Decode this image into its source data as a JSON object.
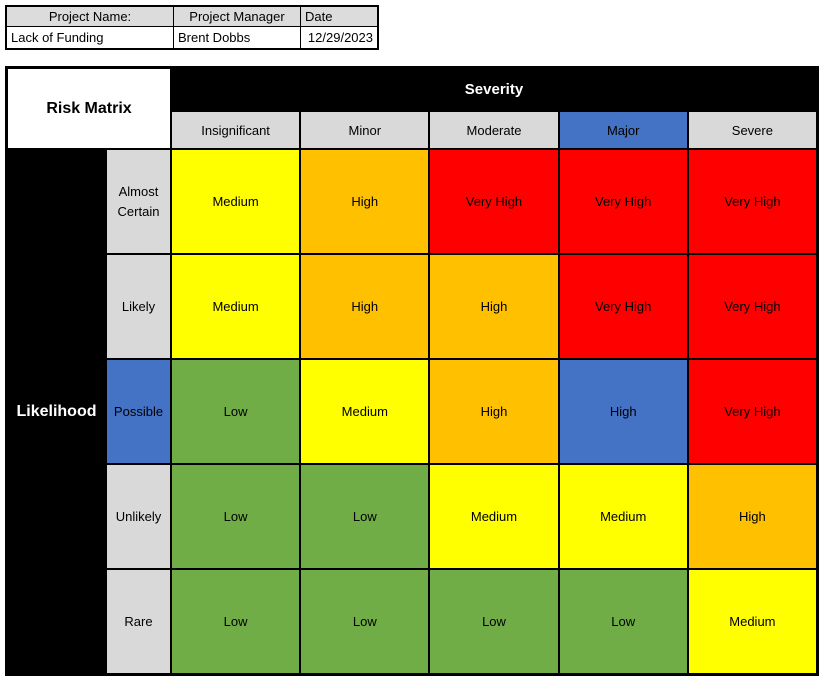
{
  "project_info": {
    "headers": {
      "name": "Project Name:",
      "manager": "Project Manager",
      "date": "Date"
    },
    "values": {
      "name": "Lack of Funding",
      "manager": "Brent Dobbs",
      "date": "12/29/2023"
    }
  },
  "matrix": {
    "title": "Risk Matrix",
    "col_axis_label": "Severity",
    "row_axis_label": "Likelihood",
    "severity_levels": [
      {
        "label": "Insignificant",
        "bg": "#d9d9d9"
      },
      {
        "label": "Minor",
        "bg": "#d9d9d9"
      },
      {
        "label": "Moderate",
        "bg": "#d9d9d9"
      },
      {
        "label": "Major",
        "bg": "#4472c4"
      },
      {
        "label": "Severe",
        "bg": "#d9d9d9"
      }
    ],
    "rows": [
      {
        "label": "Almost Certain",
        "bg": "#d9d9d9",
        "cells": [
          {
            "text": "Medium",
            "bg": "#ffff00"
          },
          {
            "text": "High",
            "bg": "#ffc000"
          },
          {
            "text": "Very High",
            "bg": "#ff0000"
          },
          {
            "text": "Very High",
            "bg": "#ff0000"
          },
          {
            "text": "Very High",
            "bg": "#ff0000"
          }
        ]
      },
      {
        "label": "Likely",
        "bg": "#d9d9d9",
        "cells": [
          {
            "text": "Medium",
            "bg": "#ffff00"
          },
          {
            "text": "High",
            "bg": "#ffc000"
          },
          {
            "text": "High",
            "bg": "#ffc000"
          },
          {
            "text": "Very High",
            "bg": "#ff0000"
          },
          {
            "text": "Very High",
            "bg": "#ff0000"
          }
        ]
      },
      {
        "label": "Possible",
        "bg": "#4472c4",
        "cells": [
          {
            "text": "Low",
            "bg": "#70ad47"
          },
          {
            "text": "Medium",
            "bg": "#ffff00"
          },
          {
            "text": "High",
            "bg": "#ffc000"
          },
          {
            "text": "High",
            "bg": "#4472c4"
          },
          {
            "text": "Very High",
            "bg": "#ff0000"
          }
        ]
      },
      {
        "label": "Unlikely",
        "bg": "#d9d9d9",
        "cells": [
          {
            "text": "Low",
            "bg": "#70ad47"
          },
          {
            "text": "Low",
            "bg": "#70ad47"
          },
          {
            "text": "Medium",
            "bg": "#ffff00"
          },
          {
            "text": "Medium",
            "bg": "#ffff00"
          },
          {
            "text": "High",
            "bg": "#ffc000"
          }
        ]
      },
      {
        "label": "Rare",
        "bg": "#d9d9d9",
        "cells": [
          {
            "text": "Low",
            "bg": "#70ad47"
          },
          {
            "text": "Low",
            "bg": "#70ad47"
          },
          {
            "text": "Low",
            "bg": "#70ad47"
          },
          {
            "text": "Low",
            "bg": "#70ad47"
          },
          {
            "text": "Medium",
            "bg": "#ffff00"
          }
        ]
      }
    ]
  },
  "palette": {
    "low": "#70ad47",
    "medium": "#ffff00",
    "high": "#ffc000",
    "very_high": "#ff0000",
    "highlight_blue": "#4472c4",
    "header_gray": "#d9d9d9",
    "axis_black": "#000000"
  },
  "chart_data": {
    "type": "heatmap",
    "title": "Risk Matrix",
    "xlabel": "Severity",
    "ylabel": "Likelihood",
    "x_categories": [
      "Insignificant",
      "Minor",
      "Moderate",
      "Major",
      "Severe"
    ],
    "y_categories": [
      "Almost Certain",
      "Likely",
      "Possible",
      "Unlikely",
      "Rare"
    ],
    "values": [
      [
        "Medium",
        "High",
        "Very High",
        "Very High",
        "Very High"
      ],
      [
        "Medium",
        "High",
        "High",
        "Very High",
        "Very High"
      ],
      [
        "Low",
        "Medium",
        "High",
        "High",
        "Very High"
      ],
      [
        "Low",
        "Low",
        "Medium",
        "Medium",
        "High"
      ],
      [
        "Low",
        "Low",
        "Low",
        "Low",
        "Medium"
      ]
    ],
    "cell_colors": [
      [
        "#ffff00",
        "#ffc000",
        "#ff0000",
        "#ff0000",
        "#ff0000"
      ],
      [
        "#ffff00",
        "#ffc000",
        "#ffc000",
        "#ff0000",
        "#ff0000"
      ],
      [
        "#70ad47",
        "#ffff00",
        "#ffc000",
        "#4472c4",
        "#ff0000"
      ],
      [
        "#70ad47",
        "#70ad47",
        "#ffff00",
        "#ffff00",
        "#ffc000"
      ],
      [
        "#70ad47",
        "#70ad47",
        "#70ad47",
        "#70ad47",
        "#ffff00"
      ]
    ],
    "highlighted_x_category": "Major",
    "highlighted_y_category": "Possible",
    "legend_position": "none",
    "grid": true
  }
}
